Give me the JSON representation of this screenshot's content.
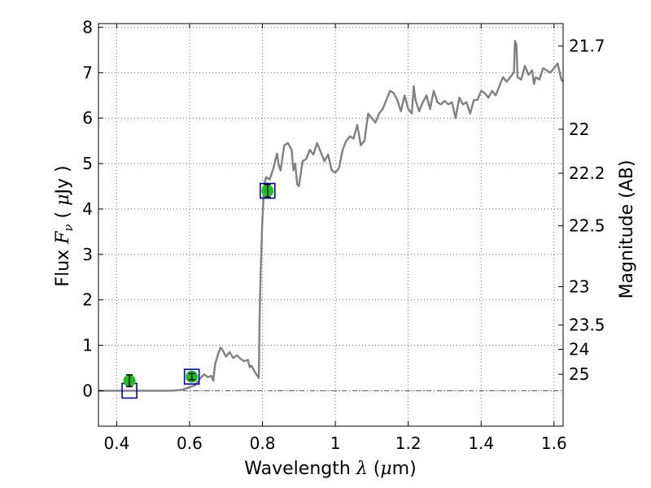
{
  "chart_data": {
    "type": "line",
    "xlabel_text": "Wavelength",
    "xlabel_symbol": "λ",
    "xlabel_unit_open": "(",
    "xlabel_unit_mu": "μ",
    "xlabel_unit_rest": "m)",
    "ylabel_text": "Flux",
    "ylabel_symbol": "F",
    "ylabel_subscript": "ν",
    "ylabel_unit_open": "(",
    "ylabel_unit_mu": "μ",
    "ylabel_unit_rest": "Jy )",
    "y2label": "Magnitude (AB)",
    "xlim": [
      0.35,
      1.625
    ],
    "ylim": [
      -0.78,
      8.08
    ],
    "grid": true,
    "x_ticks": [
      {
        "value": 0.4,
        "label": "0.4"
      },
      {
        "value": 0.6,
        "label": "0.6"
      },
      {
        "value": 0.8,
        "label": "0.8"
      },
      {
        "value": 1.0,
        "label": "1"
      },
      {
        "value": 1.2,
        "label": "1.2"
      },
      {
        "value": 1.4,
        "label": "1.4"
      },
      {
        "value": 1.6,
        "label": "1.6"
      }
    ],
    "y_ticks": [
      {
        "value": 0,
        "label": "0"
      },
      {
        "value": 1,
        "label": "1"
      },
      {
        "value": 2,
        "label": "2"
      },
      {
        "value": 3,
        "label": "3"
      },
      {
        "value": 4,
        "label": "4"
      },
      {
        "value": 5,
        "label": "5"
      },
      {
        "value": 6,
        "label": "6"
      },
      {
        "value": 7,
        "label": "7"
      },
      {
        "value": 8,
        "label": "8"
      }
    ],
    "y2_ticks": [
      {
        "magnitude": 21.7,
        "label": "21.7"
      },
      {
        "magnitude": 22.0,
        "label": "22"
      },
      {
        "magnitude": 22.2,
        "label": "22.2"
      },
      {
        "magnitude": 22.5,
        "label": "22.5"
      },
      {
        "magnitude": 23.0,
        "label": "23"
      },
      {
        "magnitude": 23.5,
        "label": "23.5"
      },
      {
        "magnitude": 24.0,
        "label": "24"
      },
      {
        "magnitude": 25.0,
        "label": "25"
      }
    ],
    "colors": {
      "spectrum": "#808080",
      "observed": "#1fbf1f",
      "model_box": "#0000cc",
      "errorbar": "#000000",
      "grid": "#555555"
    },
    "series": [
      {
        "kind": "model-spectrum",
        "points": [
          [
            0.35,
            0
          ],
          [
            0.45,
            0
          ],
          [
            0.55,
            0
          ],
          [
            0.58,
            0.02
          ],
          [
            0.6,
            0.08
          ],
          [
            0.615,
            0.12
          ],
          [
            0.63,
            0.28
          ],
          [
            0.64,
            0.36
          ],
          [
            0.65,
            0.3
          ],
          [
            0.66,
            0.33
          ],
          [
            0.665,
            0.22
          ],
          [
            0.67,
            0.58
          ],
          [
            0.678,
            0.8
          ],
          [
            0.685,
            0.95
          ],
          [
            0.69,
            0.9
          ],
          [
            0.7,
            0.75
          ],
          [
            0.71,
            0.85
          ],
          [
            0.72,
            0.72
          ],
          [
            0.73,
            0.78
          ],
          [
            0.74,
            0.7
          ],
          [
            0.75,
            0.65
          ],
          [
            0.76,
            0.68
          ],
          [
            0.765,
            0.52
          ],
          [
            0.77,
            0.55
          ],
          [
            0.78,
            0.4
          ],
          [
            0.79,
            0.28
          ],
          [
            0.792,
            1.5
          ],
          [
            0.795,
            2.6
          ],
          [
            0.8,
            3.8
          ],
          [
            0.805,
            4.55
          ],
          [
            0.81,
            4.7
          ],
          [
            0.82,
            4.65
          ],
          [
            0.83,
            4.9
          ],
          [
            0.84,
            5.22
          ],
          [
            0.845,
            4.95
          ],
          [
            0.85,
            4.85
          ],
          [
            0.855,
            5.15
          ],
          [
            0.86,
            5.4
          ],
          [
            0.87,
            5.45
          ],
          [
            0.88,
            5.3
          ],
          [
            0.885,
            4.85
          ],
          [
            0.89,
            5.0
          ],
          [
            0.895,
            4.55
          ],
          [
            0.9,
            4.5
          ],
          [
            0.91,
            5.05
          ],
          [
            0.92,
            5.1
          ],
          [
            0.93,
            5.3
          ],
          [
            0.94,
            5.2
          ],
          [
            0.95,
            5.45
          ],
          [
            0.96,
            5.25
          ],
          [
            0.97,
            5.05
          ],
          [
            0.98,
            5.2
          ],
          [
            0.99,
            4.85
          ],
          [
            1.0,
            4.8
          ],
          [
            1.01,
            4.9
          ],
          [
            1.02,
            5.3
          ],
          [
            1.03,
            5.5
          ],
          [
            1.04,
            5.6
          ],
          [
            1.05,
            5.55
          ],
          [
            1.06,
            5.85
          ],
          [
            1.07,
            5.4
          ],
          [
            1.08,
            5.5
          ],
          [
            1.09,
            6.1
          ],
          [
            1.1,
            6.0
          ],
          [
            1.11,
            5.9
          ],
          [
            1.12,
            6.1
          ],
          [
            1.13,
            6.2
          ],
          [
            1.14,
            6.4
          ],
          [
            1.15,
            6.6
          ],
          [
            1.16,
            6.55
          ],
          [
            1.17,
            6.4
          ],
          [
            1.18,
            6.15
          ],
          [
            1.19,
            6.5
          ],
          [
            1.2,
            6.2
          ],
          [
            1.21,
            6.1
          ],
          [
            1.215,
            6.7
          ],
          [
            1.22,
            6.4
          ],
          [
            1.23,
            6.15
          ],
          [
            1.24,
            6.35
          ],
          [
            1.25,
            6.5
          ],
          [
            1.26,
            6.2
          ],
          [
            1.27,
            6.6
          ],
          [
            1.28,
            6.35
          ],
          [
            1.29,
            6.3
          ],
          [
            1.3,
            6.38
          ],
          [
            1.31,
            6.3
          ],
          [
            1.32,
            6.35
          ],
          [
            1.33,
            6.0
          ],
          [
            1.34,
            6.45
          ],
          [
            1.35,
            6.3
          ],
          [
            1.36,
            6.35
          ],
          [
            1.37,
            6.1
          ],
          [
            1.38,
            6.4
          ],
          [
            1.39,
            6.4
          ],
          [
            1.4,
            6.6
          ],
          [
            1.41,
            6.55
          ],
          [
            1.42,
            6.45
          ],
          [
            1.43,
            6.6
          ],
          [
            1.44,
            6.5
          ],
          [
            1.45,
            6.7
          ],
          [
            1.46,
            6.9
          ],
          [
            1.47,
            6.8
          ],
          [
            1.48,
            6.9
          ],
          [
            1.49,
            7.0
          ],
          [
            1.493,
            7.7
          ],
          [
            1.497,
            7.6
          ],
          [
            1.5,
            6.9
          ],
          [
            1.51,
            6.85
          ],
          [
            1.52,
            7.15
          ],
          [
            1.53,
            6.95
          ],
          [
            1.54,
            7.05
          ],
          [
            1.545,
            6.75
          ],
          [
            1.55,
            6.9
          ],
          [
            1.56,
            6.85
          ],
          [
            1.57,
            7.1
          ],
          [
            1.58,
            7.05
          ],
          [
            1.59,
            7.0
          ],
          [
            1.6,
            7.1
          ],
          [
            1.61,
            7.2
          ],
          [
            1.62,
            6.85
          ],
          [
            1.625,
            6.8
          ]
        ]
      },
      {
        "kind": "observed-photometry",
        "points": [
          {
            "x": 0.435,
            "y": 0.22,
            "err": 0.13
          },
          {
            "x": 0.606,
            "y": 0.31,
            "err": 0.07
          },
          {
            "x": 0.814,
            "y": 4.4,
            "err": 0.14
          }
        ]
      },
      {
        "kind": "model-photometry",
        "points": [
          {
            "x": 0.435,
            "y": 0.0
          },
          {
            "x": 0.606,
            "y": 0.31
          },
          {
            "x": 0.814,
            "y": 4.4
          }
        ]
      }
    ]
  }
}
